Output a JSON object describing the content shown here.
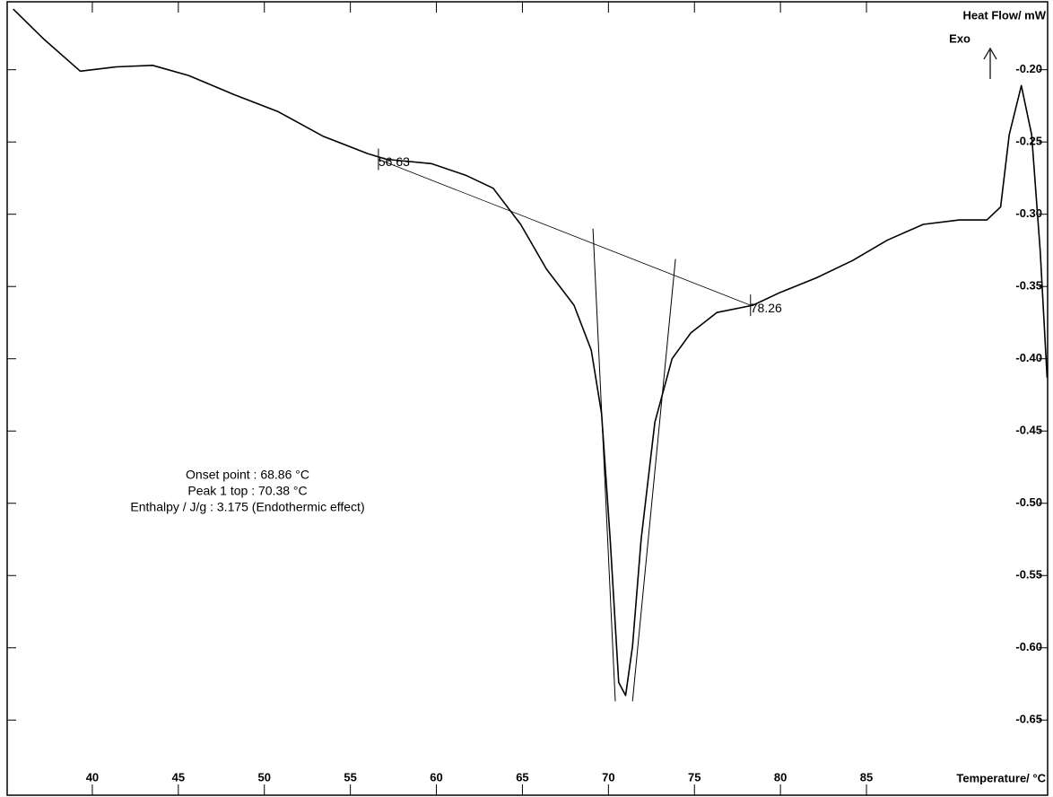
{
  "chart_data": {
    "type": "line",
    "x_label": "Temperature/ °C",
    "y_label": "Heat Flow/ mW",
    "exo_label": "Exo",
    "xlim": [
      35.05,
      95.53
    ],
    "ylim": [
      -0.702,
      -0.153
    ],
    "xticks": [
      40,
      45,
      50,
      55,
      60,
      65,
      70,
      75,
      80,
      85
    ],
    "yticks": [
      {
        "value": -0.2,
        "label": "-0.20"
      },
      {
        "value": -0.25,
        "label": "-0.25"
      },
      {
        "value": -0.3,
        "label": "-0.30"
      },
      {
        "value": -0.35,
        "label": "-0.35"
      },
      {
        "value": -0.4,
        "label": "-0.40"
      },
      {
        "value": -0.45,
        "label": "-0.45"
      },
      {
        "value": -0.5,
        "label": "-0.50"
      },
      {
        "value": -0.55,
        "label": "-0.55"
      },
      {
        "value": -0.6,
        "label": "-0.60"
      },
      {
        "value": -0.65,
        "label": "-0.65"
      }
    ],
    "grid": false,
    "series": [
      {
        "color": "#000000",
        "x": [
          35.4,
          37.2,
          39.3,
          41.4,
          43.5,
          45.6,
          48.2,
          50.8,
          53.4,
          56.0,
          57.1,
          59.7,
          61.7,
          63.3,
          64.9,
          66.4,
          68.0,
          69.0,
          69.6,
          70.1,
          70.6,
          71.0,
          71.4,
          71.9,
          72.7,
          73.7,
          74.8,
          76.3,
          78.4,
          80.0,
          82.1,
          84.2,
          86.2,
          88.3,
          90.4,
          92.0,
          92.8,
          93.3,
          94.0,
          94.6,
          95.1,
          95.5
        ],
        "values": [
          -0.158,
          -0.179,
          -0.201,
          -0.198,
          -0.197,
          -0.204,
          -0.217,
          -0.229,
          -0.246,
          -0.258,
          -0.262,
          -0.265,
          -0.273,
          -0.282,
          -0.307,
          -0.338,
          -0.363,
          -0.394,
          -0.438,
          -0.525,
          -0.624,
          -0.633,
          -0.599,
          -0.525,
          -0.444,
          -0.4,
          -0.382,
          -0.368,
          -0.363,
          -0.354,
          -0.344,
          -0.332,
          -0.318,
          -0.307,
          -0.304,
          -0.304,
          -0.295,
          -0.245,
          -0.211,
          -0.245,
          -0.326,
          -0.413
        ]
      }
    ],
    "baseline": {
      "x": [
        56.63,
        78.26
      ],
      "values": [
        -0.262,
        -0.363
      ]
    },
    "tangents": [
      {
        "x": [
          69.1,
          70.4
        ],
        "values": [
          -0.31,
          -0.637
        ]
      },
      {
        "x": [
          73.9,
          71.4
        ],
        "values": [
          -0.331,
          -0.637
        ]
      }
    ],
    "annotations": [
      "Onset point : 68.86  °C",
      "Peak 1 top : 70.38  °C",
      "Enthalpy / J/g : 3.175 (Endothermic effect)"
    ]
  }
}
